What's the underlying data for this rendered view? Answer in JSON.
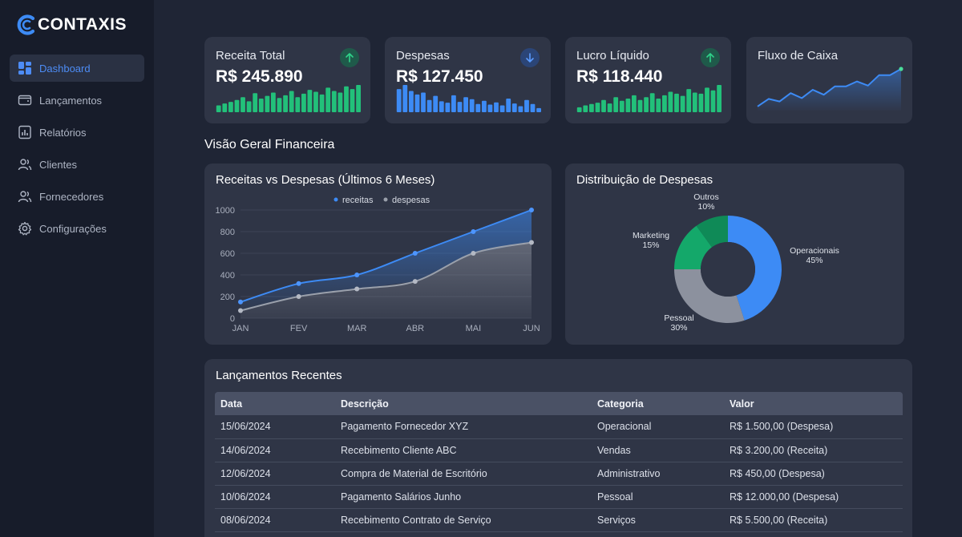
{
  "brand": {
    "name": "CONTAXIS",
    "logo_color": "#3d8bf5"
  },
  "sidebar": {
    "items": [
      {
        "label": "Dashboard",
        "icon": "dashboard-icon",
        "active": true
      },
      {
        "label": "Lançamentos",
        "icon": "wallet-icon",
        "active": false
      },
      {
        "label": "Relatórios",
        "icon": "report-icon",
        "active": false
      },
      {
        "label": "Clientes",
        "icon": "users-icon",
        "active": false
      },
      {
        "label": "Fornecedores",
        "icon": "users-icon",
        "active": false
      },
      {
        "label": "Configurações",
        "icon": "gear-icon",
        "active": false
      }
    ]
  },
  "kpis": [
    {
      "title": "Receita Total",
      "value": "R$ 245.890",
      "trend": "up",
      "icon": "arrow-up-icon",
      "color": "#22c07a",
      "sparkline": [
        0.25,
        0.32,
        0.38,
        0.45,
        0.55,
        0.4,
        0.7,
        0.5,
        0.6,
        0.72,
        0.52,
        0.62,
        0.78,
        0.55,
        0.68,
        0.82,
        0.75,
        0.65,
        0.9,
        0.78,
        0.72,
        0.95,
        0.85,
        1.0
      ]
    },
    {
      "title": "Despesas",
      "value": "R$ 127.450",
      "trend": "down",
      "icon": "arrow-down-icon",
      "color": "#3d8bf5",
      "sparkline": [
        0.85,
        1.0,
        0.78,
        0.65,
        0.72,
        0.45,
        0.6,
        0.4,
        0.35,
        0.62,
        0.38,
        0.55,
        0.48,
        0.3,
        0.42,
        0.28,
        0.36,
        0.25,
        0.5,
        0.32,
        0.22,
        0.45,
        0.3,
        0.15
      ]
    },
    {
      "title": "Lucro Líquido",
      "value": "R$ 118.440",
      "trend": "up",
      "icon": "arrow-up-icon",
      "color": "#22c07a",
      "sparkline": [
        0.18,
        0.25,
        0.3,
        0.35,
        0.45,
        0.32,
        0.55,
        0.42,
        0.5,
        0.62,
        0.45,
        0.55,
        0.7,
        0.5,
        0.62,
        0.75,
        0.68,
        0.6,
        0.85,
        0.72,
        0.68,
        0.9,
        0.8,
        1.0
      ]
    },
    {
      "title": "Fluxo de Caixa",
      "color": "#3d8bf5",
      "sparkline": [
        0.1,
        0.28,
        0.22,
        0.42,
        0.3,
        0.5,
        0.38,
        0.58,
        0.58,
        0.7,
        0.6,
        0.85,
        0.85,
        1.0
      ]
    }
  ],
  "section_title": "Visão Geral Financeira",
  "line_chart_title": "Receitas vs Despesas (Últimos 6 Meses)",
  "donut_title": "Distribuição de Despesas",
  "chart_data": [
    {
      "type": "line",
      "categories": [
        "JAN",
        "FEV",
        "MAR",
        "ABR",
        "MAI",
        "JUN"
      ],
      "x": [
        0,
        1,
        1.5,
        2,
        2.5,
        3,
        3.5,
        4,
        4.5,
        5
      ],
      "series": [
        {
          "name": "receitas",
          "color": "#3d8bf5",
          "points": [
            [
              0,
              150
            ],
            [
              1,
              320
            ],
            [
              2,
              400
            ],
            [
              3,
              600
            ],
            [
              4,
              800
            ],
            [
              5,
              1000
            ]
          ]
        },
        {
          "name": "despesas",
          "color": "#9aa0ab",
          "points": [
            [
              0,
              70
            ],
            [
              1,
              200
            ],
            [
              2,
              270
            ],
            [
              3,
              340
            ],
            [
              4,
              600
            ],
            [
              5,
              700
            ]
          ]
        }
      ],
      "yticks": [
        "1000",
        "800",
        "600",
        "400",
        "200",
        "0"
      ],
      "ylim": [
        0,
        1000
      ],
      "grid": true,
      "legend": "top"
    },
    {
      "type": "pie",
      "donut": true,
      "slices": [
        {
          "label": "Operacionais",
          "pct": "45%",
          "value": 45,
          "color": "#3d8bf5"
        },
        {
          "label": "Pessoal",
          "pct": "30%",
          "value": 30,
          "color": "#8c919e"
        },
        {
          "label": "Marketing",
          "pct": "15%",
          "value": 15,
          "color": "#14a86a"
        },
        {
          "label": "Outros",
          "pct": "10%",
          "value": 10,
          "color": "#0f8a57"
        }
      ]
    }
  ],
  "recent": {
    "title": "Lançamentos Recentes",
    "columns": [
      "Data",
      "Descrição",
      "Categoria",
      "Valor"
    ],
    "rows": [
      [
        "15/06/2024",
        "Pagamento Fornecedor XYZ",
        "Operacional",
        "R$ 1.500,00 (Despesa)"
      ],
      [
        "14/06/2024",
        "Recebimento Cliente ABC",
        "Vendas",
        "R$ 3.200,00 (Receita)"
      ],
      [
        "12/06/2024",
        "Compra de Material de Escritório",
        "Administrativo",
        "R$ 450,00 (Despesa)"
      ],
      [
        "10/06/2024",
        "Pagamento Salários Junho",
        "Pessoal",
        "R$ 12.000,00 (Despesa)"
      ],
      [
        "08/06/2024",
        "Recebimento Contrato de Serviço",
        "Serviços",
        "R$ 5.500,00 (Receita)"
      ]
    ]
  }
}
